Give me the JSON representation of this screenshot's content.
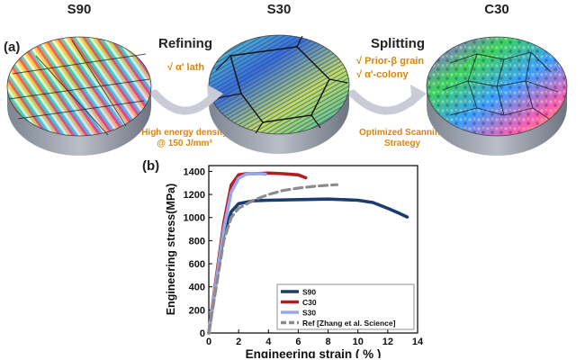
{
  "panel_a": {
    "label": "(a)",
    "disks": [
      {
        "name": "S90"
      },
      {
        "name": "S30"
      },
      {
        "name": "C30"
      }
    ],
    "steps": [
      {
        "title": "Refining",
        "items": [
          "√ α' lath"
        ],
        "note_lines": [
          "High energy density",
          "@ 150 J/mm³"
        ]
      },
      {
        "title": "Splitting",
        "items": [
          "√ Prior-β grain",
          "√ α'-colony"
        ],
        "note_lines": [
          "Optimized Scanning",
          "Strategy"
        ]
      }
    ],
    "arrow_color": "#c9ccd6"
  },
  "panel_b": {
    "label": "(b)"
  },
  "chart_data": {
    "type": "line",
    "xlabel": "Engineering strain ( % )",
    "ylabel": "Engineering stress(MPa)",
    "xlim": [
      0,
      14
    ],
    "ylim": [
      0,
      1450
    ],
    "xticks": [
      0,
      2,
      4,
      6,
      8,
      10,
      12,
      14
    ],
    "yticks": [
      0,
      200,
      400,
      600,
      800,
      1000,
      1200,
      1400
    ],
    "grid": false,
    "legend_position": "bottom-right",
    "series": [
      {
        "name": "S90",
        "color": "#1b3d6e",
        "dash": false,
        "x": [
          0,
          0.5,
          1.0,
          1.5,
          2.0,
          3,
          4,
          6,
          8,
          10,
          11,
          12,
          12.8,
          13.3
        ],
        "y": [
          0,
          450,
          850,
          1050,
          1120,
          1145,
          1150,
          1155,
          1160,
          1150,
          1130,
          1080,
          1035,
          1005
        ]
      },
      {
        "name": "C30",
        "color": "#b01d22",
        "dash": false,
        "x": [
          0,
          0.5,
          1.0,
          1.5,
          2.0,
          2.5,
          3,
          4,
          5,
          6,
          6.5
        ],
        "y": [
          0,
          480,
          950,
          1280,
          1370,
          1380,
          1380,
          1385,
          1380,
          1370,
          1345
        ]
      },
      {
        "name": "S30",
        "color": "#9aa6ea",
        "dash": false,
        "x": [
          0,
          0.5,
          1.0,
          1.5,
          2.0,
          2.5,
          3,
          3.5,
          3.8
        ],
        "y": [
          0,
          450,
          900,
          1220,
          1340,
          1375,
          1380,
          1380,
          1375
        ]
      },
      {
        "name": "Ref [Zhang et al. Science]",
        "color": "#8c8c8c",
        "dash": true,
        "x": [
          0,
          0.5,
          1.0,
          1.5,
          2.0,
          3,
          4,
          5,
          6,
          7,
          8,
          8.6
        ],
        "y": [
          0,
          400,
          800,
          1000,
          1080,
          1150,
          1200,
          1235,
          1255,
          1270,
          1280,
          1285
        ]
      }
    ]
  }
}
